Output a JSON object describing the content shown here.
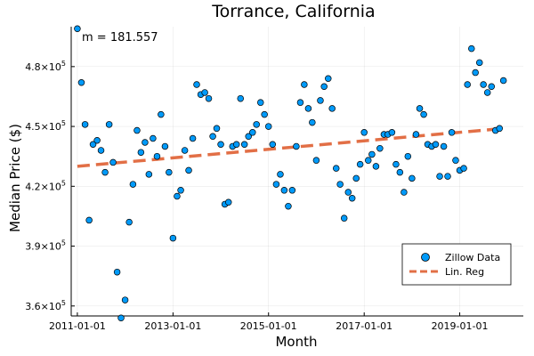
{
  "chart_data": {
    "type": "scatter",
    "title": "Torrance, California",
    "xlabel": "Month",
    "ylabel": "Median Price ($)",
    "x_ticks": [
      "2011-01-01",
      "2013-01-01",
      "2015-01-01",
      "2017-01-01",
      "2019-01-01"
    ],
    "y_ticks": [
      360000,
      390000,
      420000,
      450000,
      480000
    ],
    "y_tick_mantissa": [
      "3.6",
      "3.9",
      "4.2",
      "4.5",
      "4.8"
    ],
    "y_tick_exponent": "5",
    "xlim": [
      "2010-11-15",
      "2020-05-01"
    ],
    "ylim": [
      355000,
      500000
    ],
    "grid": true,
    "legend_position": "bottom-right",
    "annotation": "m = 181.557",
    "colors": {
      "scatter": "#009af9",
      "regression": "#e26f46"
    },
    "series": [
      {
        "name": "Zillow Data",
        "kind": "scatter",
        "x": [
          "2011-01-01",
          "2011-02-01",
          "2011-03-01",
          "2011-04-01",
          "2011-05-01",
          "2011-06-01",
          "2011-07-01",
          "2011-08-01",
          "2011-09-01",
          "2011-10-01",
          "2011-11-01",
          "2011-12-01",
          "2012-01-01",
          "2012-02-01",
          "2012-03-01",
          "2012-04-01",
          "2012-05-01",
          "2012-06-01",
          "2012-07-01",
          "2012-08-01",
          "2012-09-01",
          "2012-10-01",
          "2012-11-01",
          "2012-12-01",
          "2013-01-01",
          "2013-02-01",
          "2013-03-01",
          "2013-04-01",
          "2013-05-01",
          "2013-06-01",
          "2013-07-01",
          "2013-08-01",
          "2013-09-01",
          "2013-10-01",
          "2013-11-01",
          "2013-12-01",
          "2014-01-01",
          "2014-02-01",
          "2014-03-01",
          "2014-04-01",
          "2014-05-01",
          "2014-06-01",
          "2014-07-01",
          "2014-08-01",
          "2014-09-01",
          "2014-10-01",
          "2014-11-01",
          "2014-12-01",
          "2015-01-01",
          "2015-02-01",
          "2015-03-01",
          "2015-04-01",
          "2015-05-01",
          "2015-06-01",
          "2015-07-01",
          "2015-08-01",
          "2015-09-01",
          "2015-10-01",
          "2015-11-01",
          "2015-12-01",
          "2016-01-01",
          "2016-02-01",
          "2016-03-01",
          "2016-04-01",
          "2016-05-01",
          "2016-06-01",
          "2016-07-01",
          "2016-08-01",
          "2016-09-01",
          "2016-10-01",
          "2016-11-01",
          "2016-12-01",
          "2017-01-01",
          "2017-02-01",
          "2017-03-01",
          "2017-04-01",
          "2017-05-01",
          "2017-06-01",
          "2017-07-01",
          "2017-08-01",
          "2017-09-01",
          "2017-10-01",
          "2017-11-01",
          "2017-12-01",
          "2018-01-01",
          "2018-02-01",
          "2018-03-01",
          "2018-04-01",
          "2018-05-01",
          "2018-06-01",
          "2018-07-01",
          "2018-08-01",
          "2018-09-01",
          "2018-10-01",
          "2018-11-01",
          "2018-12-01",
          "2019-01-01",
          "2019-02-01",
          "2019-03-01",
          "2019-04-01",
          "2019-05-01",
          "2019-06-01",
          "2019-07-01",
          "2019-08-01",
          "2019-09-01",
          "2019-10-01",
          "2019-11-01",
          "2019-12-01"
        ],
        "y": [
          499000,
          472000,
          451000,
          403000,
          441000,
          443000,
          438000,
          427000,
          451000,
          432000,
          377000,
          354000,
          363000,
          402000,
          421000,
          448000,
          437000,
          442000,
          426000,
          444000,
          435000,
          456000,
          440000,
          427000,
          394000,
          415000,
          418000,
          438000,
          428000,
          444000,
          471000,
          466000,
          467000,
          464000,
          445000,
          449000,
          441000,
          411000,
          412000,
          440000,
          441000,
          464000,
          441000,
          445000,
          447000,
          451000,
          462000,
          456000,
          450000,
          441000,
          421000,
          426000,
          418000,
          410000,
          418000,
          440000,
          462000,
          471000,
          459000,
          452000,
          433000,
          463000,
          470000,
          474000,
          459000,
          429000,
          421000,
          404000,
          417000,
          414000,
          424000,
          431000,
          447000,
          433000,
          436000,
          430000,
          439000,
          446000,
          446000,
          447000,
          431000,
          427000,
          417000,
          435000,
          424000,
          446000,
          459000,
          456000,
          441000,
          440000,
          441000,
          425000,
          440000,
          425000,
          447000,
          433000,
          428000,
          429000,
          471000,
          489000,
          477000,
          482000,
          471000,
          467000,
          470000,
          448000,
          449000,
          473000
        ]
      },
      {
        "name": "Lin. Reg",
        "kind": "line",
        "x": [
          "2011-01-01",
          "2019-12-01"
        ],
        "y": [
          430000,
          449000
        ]
      }
    ]
  }
}
